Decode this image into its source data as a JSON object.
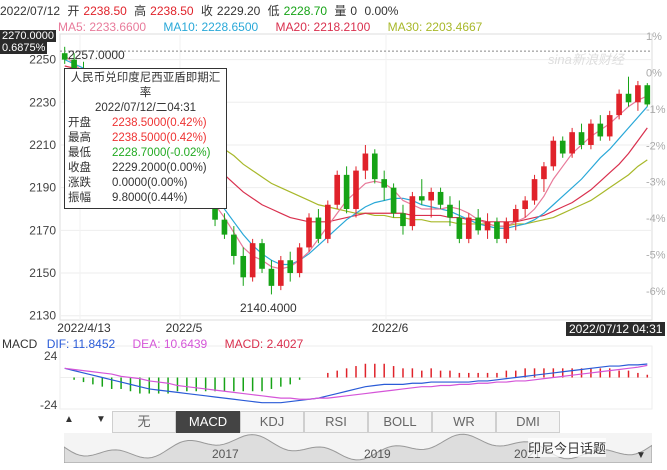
{
  "header": {
    "date": "2022/07/12",
    "open_label": "开",
    "open": "2238.50",
    "high_label": "高",
    "high": "2238.50",
    "close_label": "收",
    "close": "2229.20",
    "low_label": "低",
    "low": "2228.70",
    "volume_label": "量",
    "volume": "0",
    "change": "0.00%"
  },
  "ma": {
    "ma5": "MA5: 2233.6600",
    "ma10": "MA10: 2228.6500",
    "ma20": "MA20: 2218.2100",
    "ma30": "MA30: 2203.4667"
  },
  "cursor": {
    "price": "2270.0000",
    "pct": "0.6875%",
    "time": "2022/07/12 04:31"
  },
  "annotations": {
    "peak": "2257.0000",
    "trough": "2140.4000"
  },
  "tooltip": {
    "title": "人民币兑印度尼西亚盾即期汇率",
    "datetime": "2022/07/12/二04:31",
    "rows": [
      {
        "k": "开盘",
        "v": "2238.5000(0.42%)",
        "c": "#e33"
      },
      {
        "k": "最高",
        "v": "2238.5000(0.42%)",
        "c": "#e33"
      },
      {
        "k": "最低",
        "v": "2228.7000(-0.02%)",
        "c": "#2a2"
      },
      {
        "k": "收盘",
        "v": "2229.2000(0.00%)",
        "c": "#333"
      },
      {
        "k": "涨跌",
        "v": "0.0000(0.00%)",
        "c": "#333"
      },
      {
        "k": "振幅",
        "v": "9.8000(0.44%)",
        "c": "#333"
      }
    ]
  },
  "macd": {
    "label": "MACD",
    "dif": "DIF: 11.8452",
    "dea": "DEA: 10.6439",
    "macd": "MACD: 2.4027",
    "ytop": "24",
    "ybot": "-24"
  },
  "tabs": [
    "无",
    "MACD",
    "KDJ",
    "RSI",
    "BOLL",
    "WR",
    "DMI"
  ],
  "mini_years": [
    "2017",
    "2019",
    "2021"
  ],
  "watermark": "sina新浪财经",
  "brand": "印尼今日话题",
  "colors": {
    "up": "#e0222a",
    "down": "#16a316",
    "ma5": "#e87a9a",
    "ma10": "#29a8d8",
    "ma20": "#d9304e",
    "ma30": "#a8b82a"
  },
  "chart_data": {
    "type": "candlestick",
    "title": "",
    "y_ticks": [
      2250,
      2230,
      2210,
      2190,
      2170,
      2150,
      2130
    ],
    "pct_ticks": [
      "1%",
      "0%",
      "-1%",
      "-2%",
      "-3%",
      "-4%",
      "-5%",
      "-6%"
    ],
    "x_ticks": [
      "2022/4/13",
      "2022/5",
      "2022/6"
    ],
    "ylim": [
      2128,
      2262
    ],
    "candles": [
      [
        2253,
        2256,
        2248,
        2250
      ],
      [
        2250,
        2253,
        2244,
        2246
      ],
      [
        2246,
        2249,
        2240,
        2242
      ],
      [
        2242,
        2245,
        2236,
        2238
      ],
      [
        2238,
        2242,
        2232,
        2234
      ],
      [
        2234,
        2238,
        2228,
        2232
      ],
      [
        2232,
        2236,
        2226,
        2228
      ],
      [
        2228,
        2232,
        2222,
        2224
      ],
      [
        2224,
        2228,
        2218,
        2220
      ],
      [
        2220,
        2224,
        2214,
        2216
      ],
      [
        2216,
        2219,
        2208,
        2210
      ],
      [
        2210,
        2214,
        2204,
        2206
      ],
      [
        2206,
        2210,
        2198,
        2200
      ],
      [
        2200,
        2204,
        2192,
        2194
      ],
      [
        2194,
        2198,
        2186,
        2188
      ],
      [
        2188,
        2192,
        2180,
        2182
      ],
      [
        2182,
        2186,
        2172,
        2175
      ],
      [
        2175,
        2178,
        2166,
        2168
      ],
      [
        2168,
        2172,
        2154,
        2158
      ],
      [
        2158,
        2162,
        2144,
        2148
      ],
      [
        2148,
        2166,
        2146,
        2164
      ],
      [
        2164,
        2166,
        2150,
        2152
      ],
      [
        2152,
        2156,
        2140,
        2144
      ],
      [
        2144,
        2158,
        2142,
        2156
      ],
      [
        2156,
        2160,
        2146,
        2150
      ],
      [
        2150,
        2164,
        2148,
        2162
      ],
      [
        2162,
        2178,
        2160,
        2176
      ],
      [
        2176,
        2180,
        2164,
        2166
      ],
      [
        2166,
        2184,
        2164,
        2182
      ],
      [
        2182,
        2198,
        2180,
        2196
      ],
      [
        2196,
        2200,
        2178,
        2180
      ],
      [
        2180,
        2200,
        2176,
        2198
      ],
      [
        2198,
        2210,
        2194,
        2206
      ],
      [
        2206,
        2208,
        2192,
        2194
      ],
      [
        2194,
        2198,
        2184,
        2190
      ],
      [
        2190,
        2192,
        2176,
        2178
      ],
      [
        2178,
        2182,
        2168,
        2172
      ],
      [
        2172,
        2188,
        2170,
        2186
      ],
      [
        2186,
        2194,
        2182,
        2184
      ],
      [
        2184,
        2190,
        2176,
        2188
      ],
      [
        2188,
        2190,
        2180,
        2182
      ],
      [
        2182,
        2186,
        2172,
        2176
      ],
      [
        2176,
        2184,
        2164,
        2166
      ],
      [
        2166,
        2178,
        2164,
        2176
      ],
      [
        2176,
        2180,
        2168,
        2170
      ],
      [
        2170,
        2178,
        2166,
        2174
      ],
      [
        2174,
        2176,
        2164,
        2166
      ],
      [
        2166,
        2176,
        2164,
        2174
      ],
      [
        2174,
        2182,
        2170,
        2180
      ],
      [
        2180,
        2186,
        2176,
        2184
      ],
      [
        2184,
        2196,
        2182,
        2194
      ],
      [
        2194,
        2202,
        2188,
        2200
      ],
      [
        2200,
        2214,
        2198,
        2212
      ],
      [
        2212,
        2214,
        2204,
        2206
      ],
      [
        2206,
        2218,
        2204,
        2216
      ],
      [
        2216,
        2220,
        2208,
        2210
      ],
      [
        2210,
        2222,
        2208,
        2220
      ],
      [
        2220,
        2224,
        2212,
        2214
      ],
      [
        2214,
        2226,
        2212,
        2224
      ],
      [
        2224,
        2236,
        2222,
        2234
      ],
      [
        2234,
        2242,
        2228,
        2230
      ],
      [
        2230,
        2240,
        2226,
        2238
      ],
      [
        2238,
        2239,
        2228,
        2229
      ]
    ],
    "ma5": [
      2252,
      2248,
      2244,
      2240,
      2236,
      2232,
      2229,
      2225,
      2222,
      2218,
      2214,
      2210,
      2205,
      2200,
      2194,
      2188,
      2182,
      2176,
      2169,
      2162,
      2158,
      2156,
      2153,
      2152,
      2153,
      2156,
      2160,
      2166,
      2172,
      2178,
      2184,
      2188,
      2192,
      2193,
      2192,
      2189,
      2184,
      2182,
      2180,
      2180,
      2180,
      2181,
      2180,
      2178,
      2175,
      2173,
      2172,
      2172,
      2174,
      2176,
      2180,
      2186,
      2194,
      2200,
      2206,
      2210,
      2214,
      2217,
      2220,
      2224,
      2228,
      2231,
      2233
    ],
    "ma10": [
      2250,
      2248,
      2246,
      2243,
      2240,
      2236,
      2233,
      2229,
      2226,
      2222,
      2218,
      2214,
      2209,
      2204,
      2198,
      2192,
      2186,
      2180,
      2174,
      2168,
      2163,
      2159,
      2156,
      2154,
      2154,
      2156,
      2159,
      2163,
      2167,
      2171,
      2175,
      2178,
      2181,
      2183,
      2184,
      2185,
      2185,
      2184,
      2182,
      2181,
      2180,
      2179,
      2177,
      2175,
      2173,
      2172,
      2171,
      2171,
      2172,
      2173,
      2175,
      2178,
      2182,
      2186,
      2190,
      2194,
      2199,
      2204,
      2208,
      2213,
      2218,
      2223,
      2228
    ],
    "ma20": [
      2247,
      2246,
      2245,
      2243,
      2241,
      2239,
      2237,
      2234,
      2231,
      2228,
      2225,
      2221,
      2217,
      2213,
      2209,
      2205,
      2200,
      2196,
      2192,
      2188,
      2185,
      2182,
      2180,
      2178,
      2176,
      2175,
      2174,
      2174,
      2174,
      2175,
      2176,
      2177,
      2178,
      2178,
      2178,
      2178,
      2178,
      2177,
      2177,
      2177,
      2177,
      2176,
      2176,
      2175,
      2175,
      2174,
      2174,
      2174,
      2174,
      2175,
      2176,
      2177,
      2179,
      2181,
      2183,
      2186,
      2189,
      2193,
      2197,
      2201,
      2206,
      2212,
      2218
    ],
    "ma30": [
      2245,
      2244,
      2243,
      2242,
      2241,
      2240,
      2238,
      2236,
      2234,
      2232,
      2230,
      2228,
      2225,
      2222,
      2219,
      2216,
      2212,
      2208,
      2205,
      2201,
      2198,
      2195,
      2192,
      2190,
      2188,
      2186,
      2184,
      2182,
      2181,
      2180,
      2179,
      2178,
      2178,
      2177,
      2177,
      2176,
      2176,
      2175,
      2175,
      2174,
      2174,
      2174,
      2173,
      2173,
      2173,
      2173,
      2172,
      2172,
      2173,
      2173,
      2174,
      2175,
      2176,
      2178,
      2180,
      2182,
      2184,
      2187,
      2190,
      2193,
      2196,
      2200,
      2203
    ],
    "macd_series": {
      "dif": [
        8,
        6,
        4,
        2,
        0,
        -2,
        -4,
        -6,
        -8,
        -10,
        -11,
        -12,
        -13,
        -14,
        -15,
        -16,
        -17,
        -18,
        -19,
        -20,
        -21,
        -22,
        -22,
        -22,
        -21,
        -20,
        -19,
        -18,
        -16,
        -14,
        -12,
        -10,
        -8,
        -7,
        -6,
        -6,
        -6,
        -5,
        -5,
        -4,
        -4,
        -4,
        -4,
        -4,
        -3,
        -3,
        -2,
        -1,
        0,
        1,
        2,
        3,
        4,
        5,
        6,
        7,
        8,
        9,
        10,
        10,
        11,
        11,
        11.8
      ],
      "dea": [
        8,
        7,
        6,
        5,
        4,
        3,
        1,
        0,
        -1,
        -3,
        -4,
        -5,
        -7,
        -8,
        -9,
        -10,
        -11,
        -12,
        -13,
        -14,
        -15,
        -16,
        -17,
        -18,
        -18,
        -19,
        -19,
        -18,
        -18,
        -17,
        -16,
        -15,
        -14,
        -13,
        -12,
        -11,
        -10,
        -9,
        -8,
        -8,
        -7,
        -7,
        -6,
        -6,
        -5,
        -5,
        -4,
        -4,
        -3,
        -3,
        -2,
        -1,
        0,
        1,
        2,
        3,
        4,
        5,
        6,
        7,
        8,
        9,
        10.6
      ],
      "ylim": [
        -24,
        24
      ]
    }
  }
}
